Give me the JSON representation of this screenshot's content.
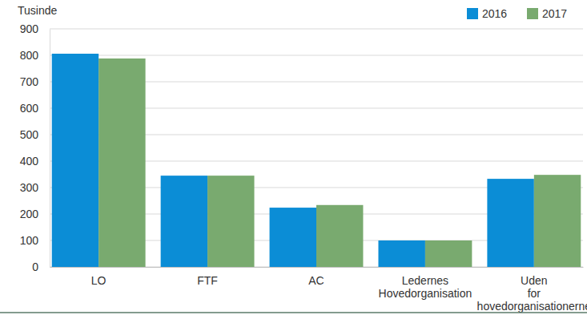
{
  "chart_data": {
    "type": "bar",
    "y_label": "Tusinde",
    "categories": [
      "LO",
      "FTF",
      "AC",
      "Ledernes Hovedorganisation",
      "Uden for hovedorganisationerne"
    ],
    "series": [
      {
        "name": "2016",
        "color": "#0b8dd6",
        "values": [
          806,
          345,
          224,
          100,
          333
        ]
      },
      {
        "name": "2017",
        "color": "#79aa6f",
        "values": [
          788,
          345,
          234,
          100,
          348
        ]
      }
    ],
    "ylim": [
      0,
      900
    ],
    "yticks": [
      0,
      100,
      200,
      300,
      400,
      500,
      600,
      700,
      800,
      900
    ],
    "grid": true,
    "legend": "top-right"
  }
}
